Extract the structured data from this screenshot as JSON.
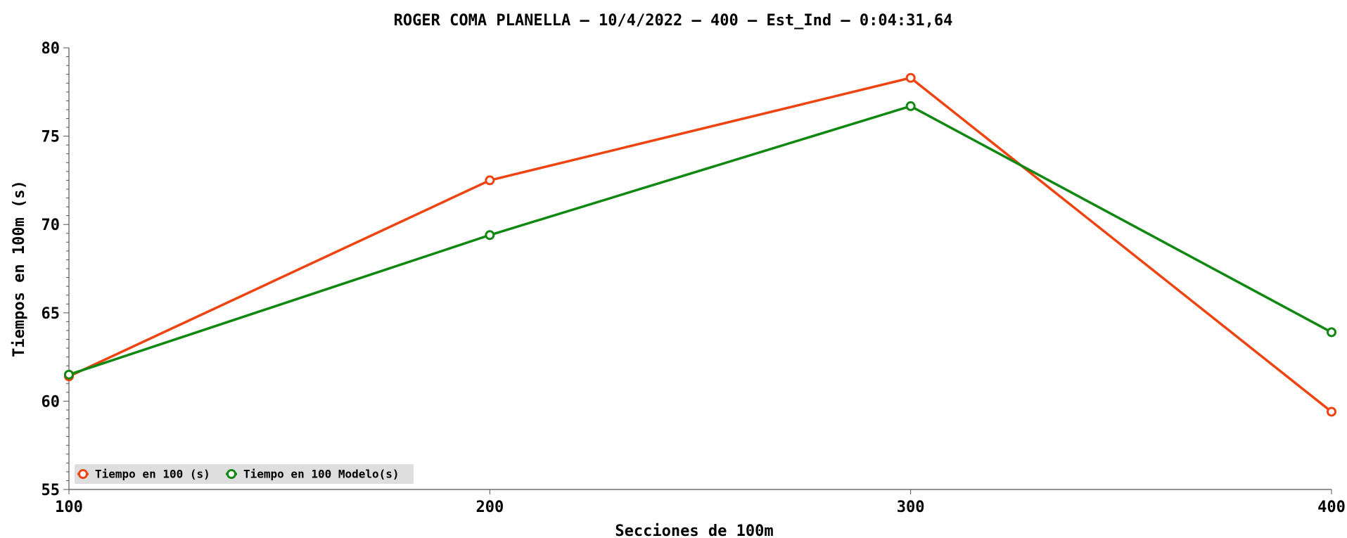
{
  "chart_data": {
    "type": "line",
    "title": "ROGER COMA PLANELLA – 10/4/2022 – 400 – Est_Ind – 0:04:31,64",
    "xlabel": "Secciones de 100m",
    "ylabel": "Tiempos en 100m (s)",
    "x": [
      100,
      200,
      300,
      400
    ],
    "xlim": [
      100,
      400
    ],
    "ylim": [
      55,
      80
    ],
    "yticks": [
      55,
      60,
      65,
      70,
      75,
      80
    ],
    "grid": false,
    "legend_position": "bottom-left",
    "series": [
      {
        "name": "Tiempo en 100 (s)",
        "color": "#ee4411",
        "values": [
          61.4,
          72.5,
          78.3,
          59.4
        ]
      },
      {
        "name": "Tiempo en 100 Modelo(s)",
        "color": "#118811",
        "values": [
          61.5,
          69.4,
          76.7,
          63.9
        ]
      }
    ]
  }
}
